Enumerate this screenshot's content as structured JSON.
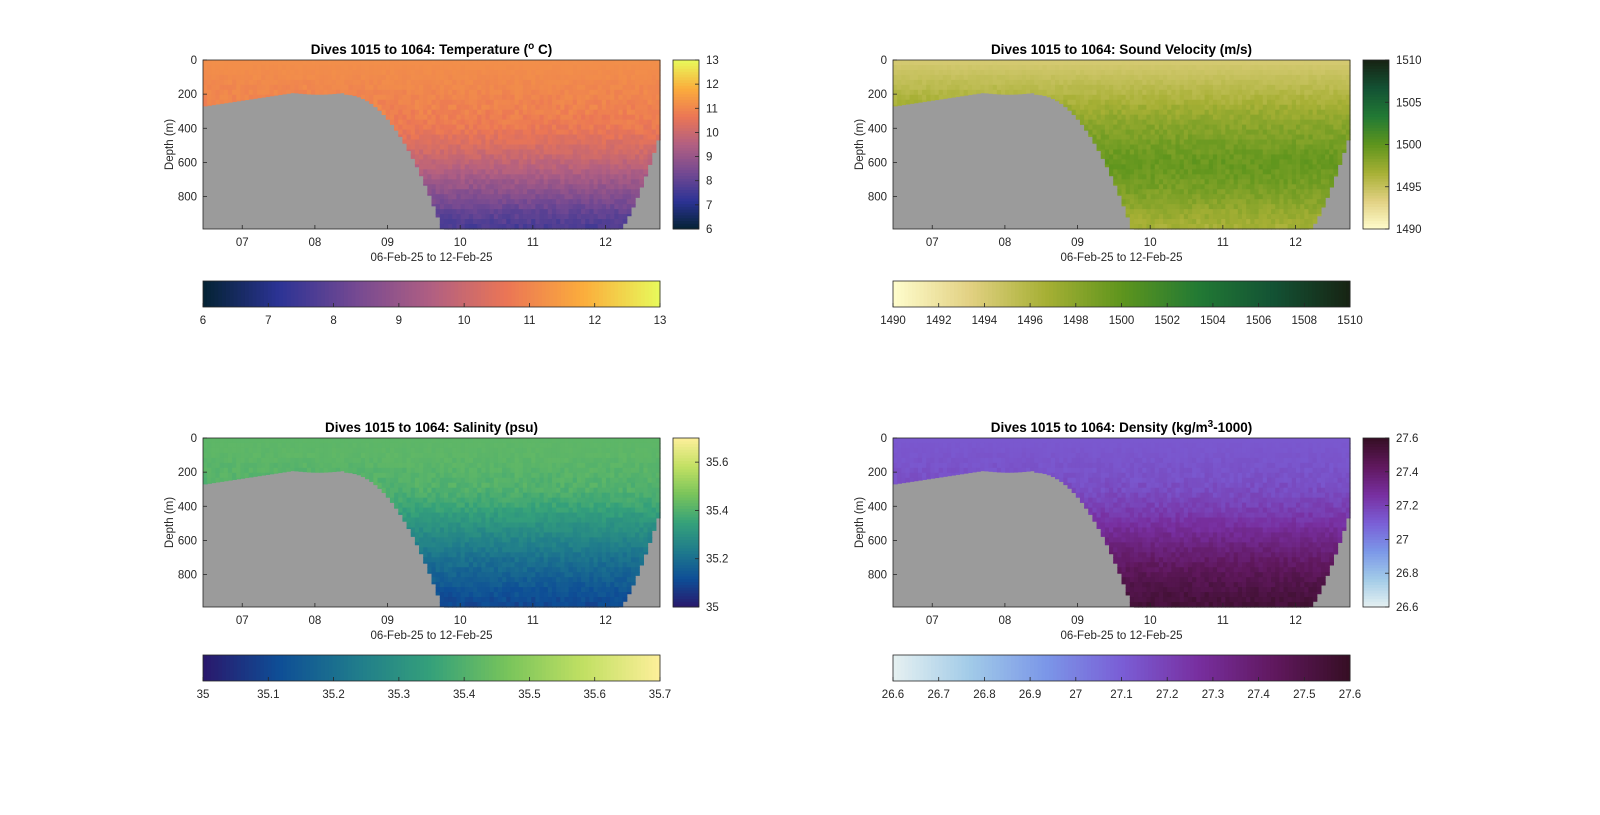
{
  "figure": {
    "background": "#ffffff",
    "bathymetry_color": "#9b9b9b"
  },
  "chart_data": [
    {
      "type": "heatmap",
      "title": "Dives 1015 to 1064: Temperature (",
      "title_sup": "o",
      "title_tail": " C)",
      "xlabel": "06-Feb-25 to 12-Feb-25",
      "ylabel": "Depth (m)",
      "xlim": [
        6.46,
        12.75
      ],
      "ylim": [
        990,
        0
      ],
      "xticks": [
        7,
        8,
        9,
        10,
        11,
        12
      ],
      "xtick_labels": [
        "07",
        "08",
        "09",
        "10",
        "11",
        "12"
      ],
      "yticks": [
        0,
        200,
        400,
        600,
        800
      ],
      "ytick_labels": [
        "0",
        "200",
        "400",
        "600",
        "800"
      ],
      "colormap": "thermal",
      "clim": [
        6,
        13
      ],
      "colorbar_ticks": [
        "6",
        "7",
        "8",
        "9",
        "10",
        "11",
        "12",
        "13"
      ],
      "horizontal_colorbar_ticks": [
        "6",
        "7",
        "8",
        "9",
        "10",
        "11",
        "12",
        "13"
      ],
      "profile": {
        "depth_m": [
          0,
          100,
          200,
          300,
          400,
          500,
          600,
          700,
          800,
          900,
          990
        ],
        "value": [
          11.2,
          11.1,
          11.0,
          10.9,
          10.7,
          10.3,
          9.8,
          9.2,
          8.6,
          8.0,
          7.6
        ]
      },
      "grid": false
    },
    {
      "type": "heatmap",
      "title": "Dives 1015 to 1064: Sound Velocity (m/s)",
      "xlabel": "06-Feb-25 to 12-Feb-25",
      "ylabel": "Depth (m)",
      "xlim": [
        6.46,
        12.75
      ],
      "ylim": [
        990,
        0
      ],
      "xticks": [
        7,
        8,
        9,
        10,
        11,
        12
      ],
      "xtick_labels": [
        "07",
        "08",
        "09",
        "10",
        "11",
        "12"
      ],
      "yticks": [
        0,
        200,
        400,
        600,
        800
      ],
      "ytick_labels": [
        "0",
        "200",
        "400",
        "600",
        "800"
      ],
      "colormap": "speed",
      "clim": [
        1490,
        1510
      ],
      "colorbar_ticks": [
        "1490",
        "1495",
        "1500",
        "1505",
        "1510"
      ],
      "colorbar_tick_values": [
        1490,
        1495,
        1500,
        1505,
        1510
      ],
      "horizontal_colorbar_ticks": [
        "1490",
        "1492",
        "1494",
        "1496",
        "1498",
        "1500",
        "1502",
        "1504",
        "1506",
        "1508",
        "1510"
      ],
      "profile": {
        "depth_m": [
          0,
          100,
          200,
          300,
          400,
          500,
          600,
          700,
          800,
          900,
          990
        ],
        "value": [
          1494.0,
          1495.0,
          1496.0,
          1497.2,
          1498.2,
          1499.0,
          1499.6,
          1499.2,
          1498.4,
          1497.4,
          1496.6
        ]
      },
      "grid": false
    },
    {
      "type": "heatmap",
      "title": "Dives 1015 to 1064: Salinity (psu)",
      "xlabel": "06-Feb-25 to 12-Feb-25",
      "ylabel": "Depth (m)",
      "xlim": [
        6.46,
        12.75
      ],
      "ylim": [
        990,
        0
      ],
      "xticks": [
        7,
        8,
        9,
        10,
        11,
        12
      ],
      "xtick_labels": [
        "07",
        "08",
        "09",
        "10",
        "11",
        "12"
      ],
      "yticks": [
        0,
        200,
        400,
        600,
        800
      ],
      "ytick_labels": [
        "0",
        "200",
        "400",
        "600",
        "800"
      ],
      "colormap": "haline",
      "clim": [
        35,
        35.7
      ],
      "colorbar_ticks": [
        "35",
        "35.2",
        "35.4",
        "35.6"
      ],
      "colorbar_tick_values": [
        35,
        35.2,
        35.4,
        35.6
      ],
      "horizontal_colorbar_ticks": [
        "35",
        "35.1",
        "35.2",
        "35.3",
        "35.4",
        "35.5",
        "35.6",
        "35.7"
      ],
      "profile": {
        "depth_m": [
          0,
          100,
          200,
          300,
          400,
          500,
          600,
          700,
          800,
          900,
          990
        ],
        "value": [
          35.42,
          35.42,
          35.41,
          35.4,
          35.36,
          35.31,
          35.26,
          35.21,
          35.17,
          35.13,
          35.1
        ]
      },
      "grid": false
    },
    {
      "type": "heatmap",
      "title": "Dives 1015 to 1064: Density (kg/m",
      "title_sup": "3",
      "title_tail": "-1000)",
      "xlabel": "06-Feb-25 to 12-Feb-25",
      "ylabel": "Depth (m)",
      "xlim": [
        6.46,
        12.75
      ],
      "ylim": [
        990,
        0
      ],
      "xticks": [
        7,
        8,
        9,
        10,
        11,
        12
      ],
      "xtick_labels": [
        "07",
        "08",
        "09",
        "10",
        "11",
        "12"
      ],
      "yticks": [
        0,
        200,
        400,
        600,
        800
      ],
      "ytick_labels": [
        "0",
        "200",
        "400",
        "600",
        "800"
      ],
      "colormap": "dense",
      "clim": [
        26.6,
        27.6
      ],
      "colorbar_ticks": [
        "26.6",
        "26.8",
        "27",
        "27.2",
        "27.4",
        "27.6"
      ],
      "colorbar_tick_values": [
        26.6,
        26.8,
        27.0,
        27.2,
        27.4,
        27.6
      ],
      "horizontal_colorbar_ticks": [
        "26.6",
        "26.7",
        "26.8",
        "26.9",
        "27",
        "27.1",
        "27.2",
        "27.3",
        "27.4",
        "27.5",
        "27.6"
      ],
      "profile": {
        "depth_m": [
          0,
          100,
          200,
          300,
          400,
          500,
          600,
          700,
          800,
          900,
          990
        ],
        "value": [
          27.12,
          27.13,
          27.14,
          27.16,
          27.2,
          27.26,
          27.33,
          27.4,
          27.46,
          27.51,
          27.54
        ]
      },
      "grid": false
    }
  ]
}
